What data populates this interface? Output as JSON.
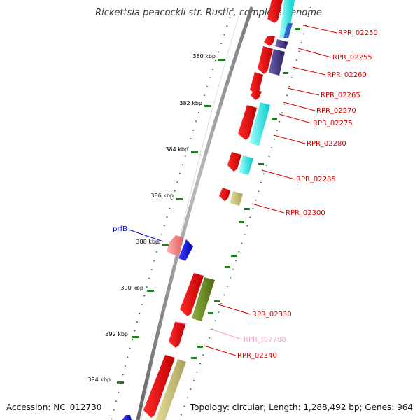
{
  "title": "Rickettsia peacockii str. Rustic, complete genome",
  "accession": "Accession: NC_012730",
  "summary": "Topology: circular; Length: 1,288,492 bp; Genes: 964",
  "tick_labels": [
    "380 kbp",
    "382 kbp",
    "384 kbp",
    "386 kbp",
    "388 kbp",
    "390 kbp",
    "392 kbp",
    "394 kbp"
  ],
  "colors": {
    "cds": "#ff0000",
    "cds_dark": "#c40000",
    "cyan": "#00ffff",
    "navy": "#4a3a8c",
    "khaki": "#c8c07a",
    "olive": "#6b8e23",
    "pink": "#f08080",
    "blue": "#0000ff",
    "tick": "#1e7e1e",
    "label_red": "#dd0000",
    "label_pink": "#ff99cc",
    "label_blue": "#0000cc",
    "backbone": "#888888"
  },
  "gene_labels": [
    {
      "text": "RPR_02250",
      "color": "red"
    },
    {
      "text": "RPR_02255",
      "color": "red"
    },
    {
      "text": "RPR_02260",
      "color": "red"
    },
    {
      "text": "RPR_02265",
      "color": "red"
    },
    {
      "text": "RPR_02270",
      "color": "red"
    },
    {
      "text": "RPR_02275",
      "color": "red"
    },
    {
      "text": "RPR_02280",
      "color": "red"
    },
    {
      "text": "RPR_02285",
      "color": "red"
    },
    {
      "text": "RPR_02300",
      "color": "red"
    },
    {
      "text": "prfB",
      "color": "blue"
    },
    {
      "text": "RPR_02330",
      "color": "red"
    },
    {
      "text": "RPR_t07788",
      "color": "pink"
    },
    {
      "text": "RPR_02340",
      "color": "red"
    }
  ]
}
